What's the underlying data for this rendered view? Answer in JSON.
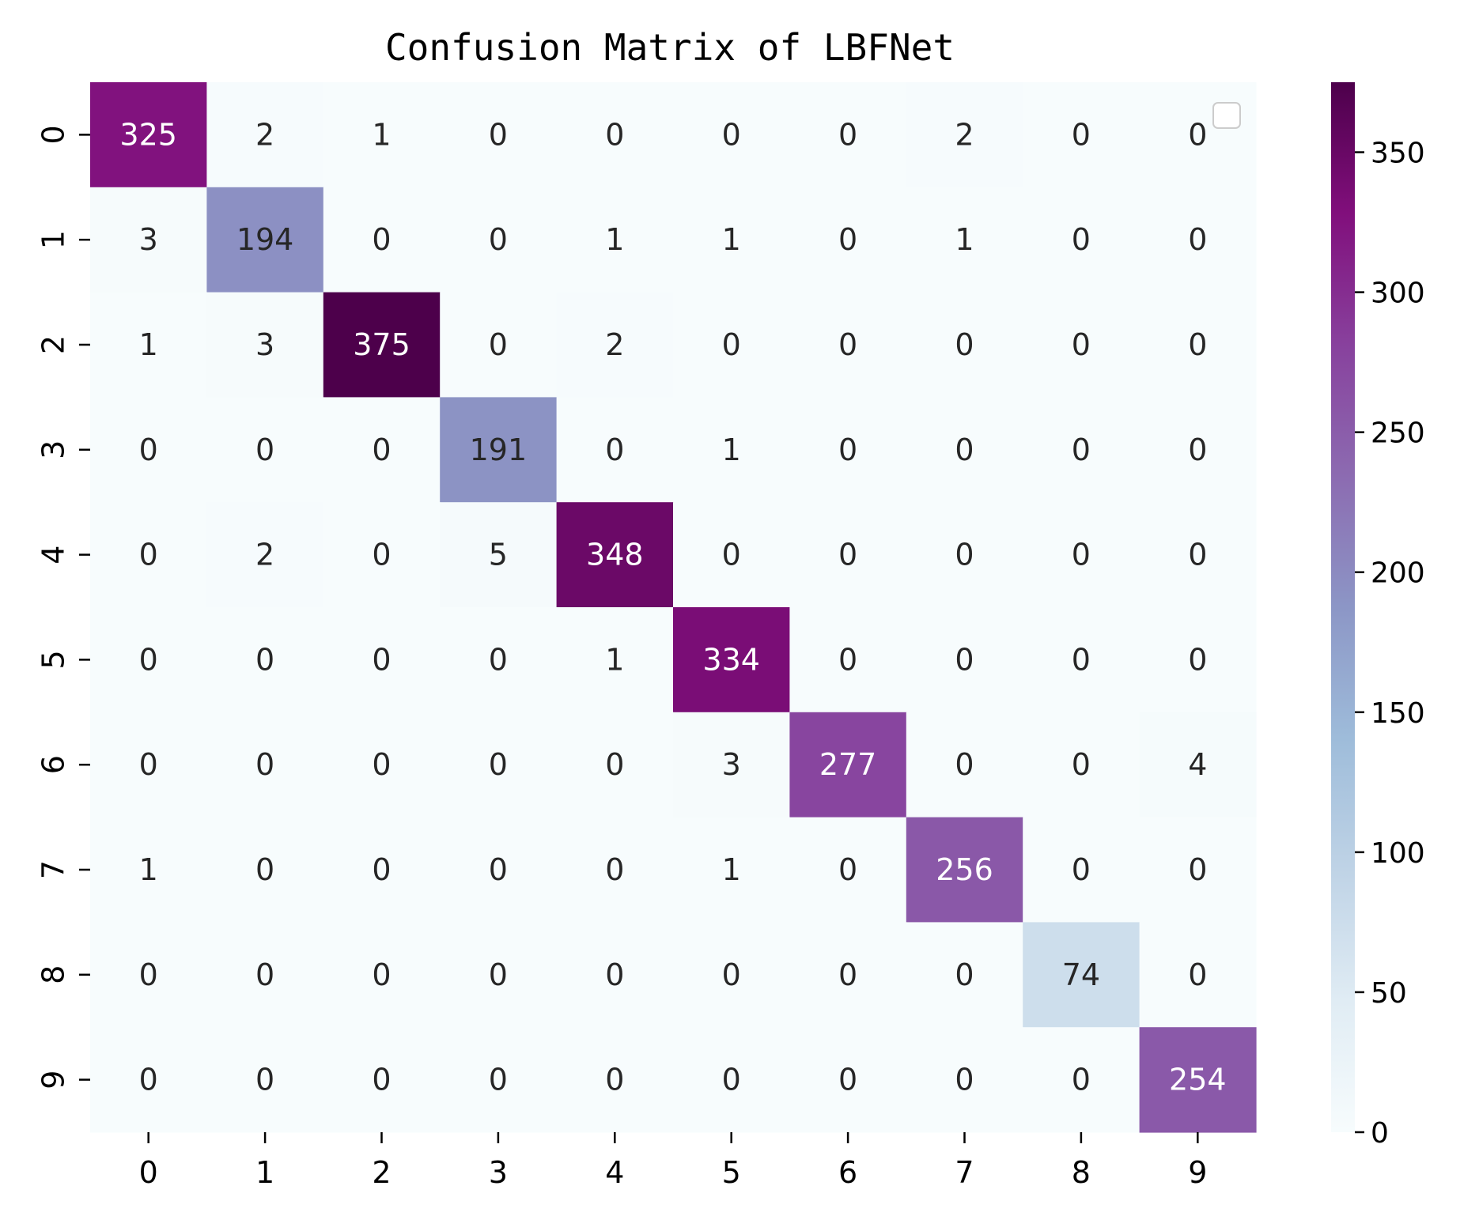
{
  "chart_data": {
    "type": "heatmap",
    "title": "Confusion Matrix of LBFNet",
    "xlabel": "",
    "ylabel": "",
    "x_categories": [
      "0",
      "1",
      "2",
      "3",
      "4",
      "5",
      "6",
      "7",
      "8",
      "9"
    ],
    "y_categories": [
      "0",
      "1",
      "2",
      "3",
      "4",
      "5",
      "6",
      "7",
      "8",
      "9"
    ],
    "values": [
      [
        325,
        2,
        1,
        0,
        0,
        0,
        0,
        2,
        0,
        0
      ],
      [
        3,
        194,
        0,
        0,
        1,
        1,
        0,
        1,
        0,
        0
      ],
      [
        1,
        3,
        375,
        0,
        2,
        0,
        0,
        0,
        0,
        0
      ],
      [
        0,
        0,
        0,
        191,
        0,
        1,
        0,
        0,
        0,
        0
      ],
      [
        0,
        2,
        0,
        5,
        348,
        0,
        0,
        0,
        0,
        0
      ],
      [
        0,
        0,
        0,
        0,
        1,
        334,
        0,
        0,
        0,
        0
      ],
      [
        0,
        0,
        0,
        0,
        0,
        3,
        277,
        0,
        0,
        4
      ],
      [
        1,
        0,
        0,
        0,
        0,
        1,
        0,
        256,
        0,
        0
      ],
      [
        0,
        0,
        0,
        0,
        0,
        0,
        0,
        0,
        74,
        0
      ],
      [
        0,
        0,
        0,
        0,
        0,
        0,
        0,
        0,
        0,
        254
      ]
    ],
    "colormap": "BuPu",
    "colormap_stops": [
      "#f7fcfd",
      "#e0ecf4",
      "#bfd3e6",
      "#9ebcda",
      "#8c96c6",
      "#8c6bb1",
      "#88419d",
      "#810f7c",
      "#4d004b"
    ],
    "color_range": [
      0,
      375
    ],
    "colorbar": {
      "ticks": [
        0,
        50,
        100,
        150,
        200,
        250,
        300,
        350
      ],
      "tick_labels": [
        "0",
        "50",
        "100",
        "150",
        "200",
        "250",
        "300",
        "350"
      ]
    },
    "empty_legend": true,
    "grid": false
  }
}
